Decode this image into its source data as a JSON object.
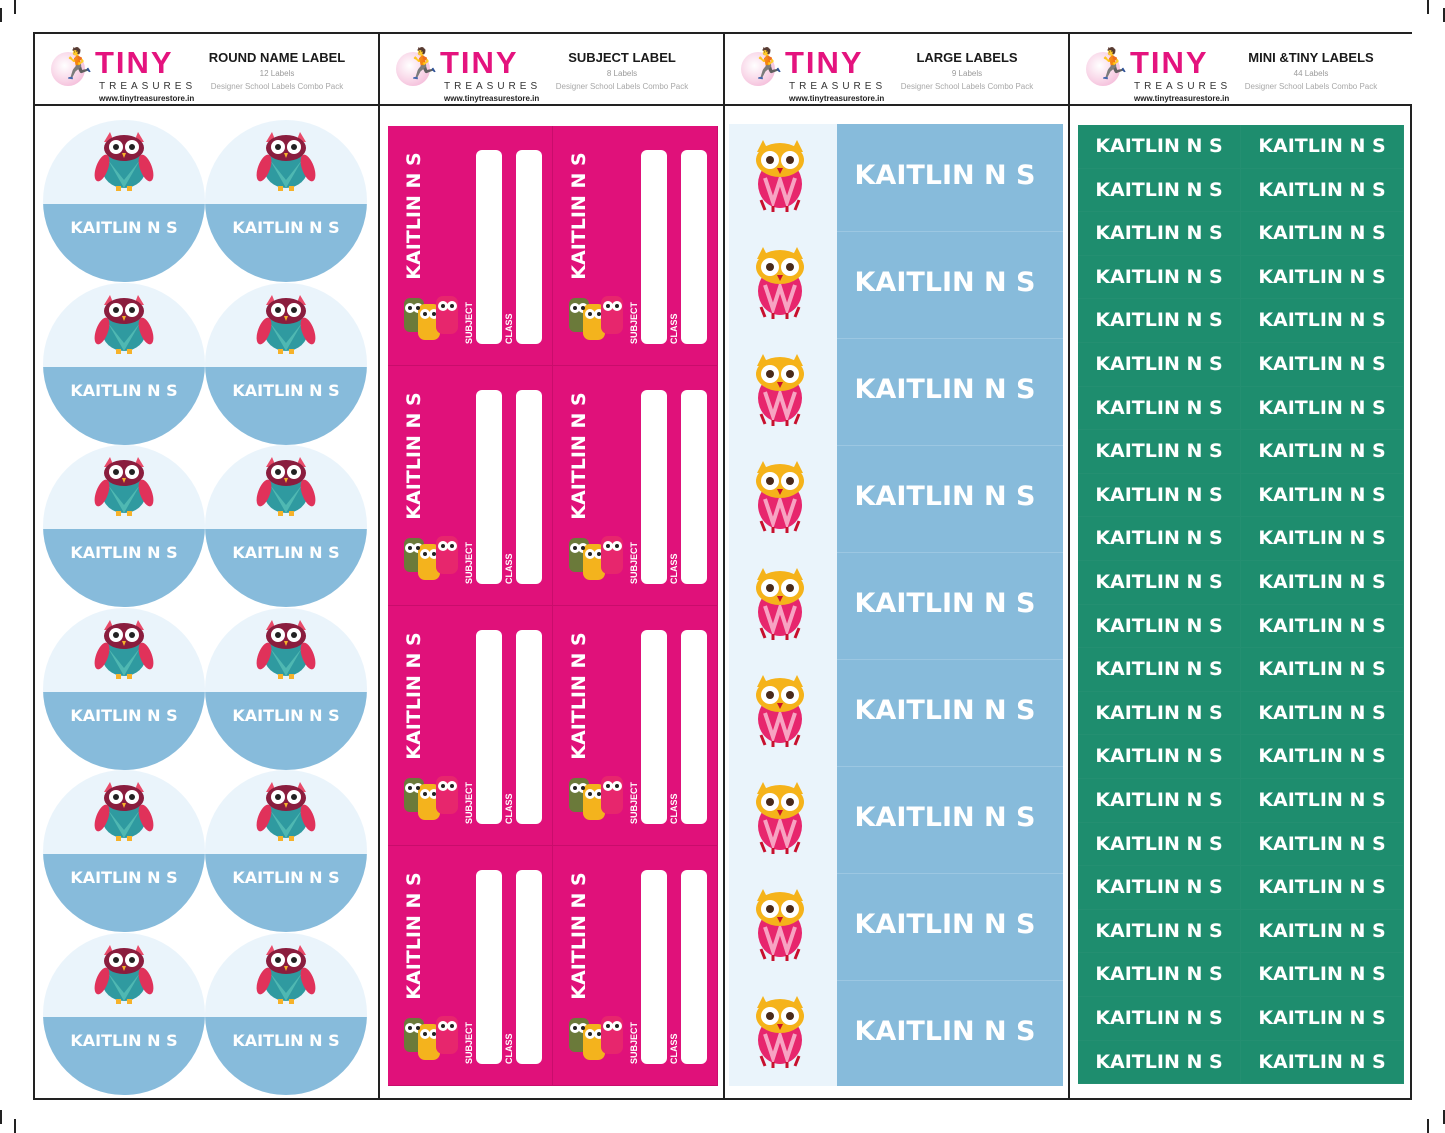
{
  "brand": {
    "name": "TINY",
    "tagline": "TREASURES",
    "url": "www.tinytreasurestore.in",
    "pink": "#e0117a",
    "blue": "#87bbdb",
    "green": "#1e8d6e"
  },
  "child_name": "KAITLIN N S",
  "sections": [
    {
      "title": "ROUND NAME LABEL",
      "count": "12 Labels",
      "subtitle": "Designer School Labels Combo Pack"
    },
    {
      "title": "SUBJECT LABEL",
      "count": "8 Labels",
      "subtitle": "Designer School Labels Combo Pack"
    },
    {
      "title": "LARGE LABELS",
      "count": "9 Labels",
      "subtitle": "Designer School Labels Combo Pack"
    },
    {
      "title": "MINI &TINY LABELS",
      "count": "44 Labels",
      "subtitle": "Designer School Labels Combo Pack"
    }
  ],
  "subject_fields": {
    "subject": "SUBJECT",
    "class": "CLASS"
  },
  "icons": [
    "runner-icon",
    "owl-icon",
    "owl-group-icon"
  ]
}
